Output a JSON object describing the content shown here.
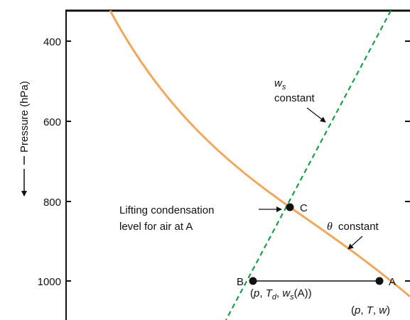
{
  "axis": {
    "label": "Pressure (hPa)",
    "ticks": [
      "400",
      "600",
      "800",
      "1000"
    ]
  },
  "curves": {
    "adiabat_label": "constant",
    "adiabat_symbol": "θ",
    "mixing_label": "constant",
    "mixing_symbol": "w",
    "mixing_subscript": "s"
  },
  "points": {
    "a": "A",
    "b": "B",
    "c": "C"
  },
  "annotations": {
    "lcl_line1": "Lifting condensation",
    "lcl_line2": "level for air at A",
    "a_tuple": "(p, T, w)",
    "b_tuple": "(p, Td, ws(A))"
  },
  "colors": {
    "adiabat": "#F0A85C",
    "mixing": "#1B9E4A",
    "ink": "#111111"
  }
}
